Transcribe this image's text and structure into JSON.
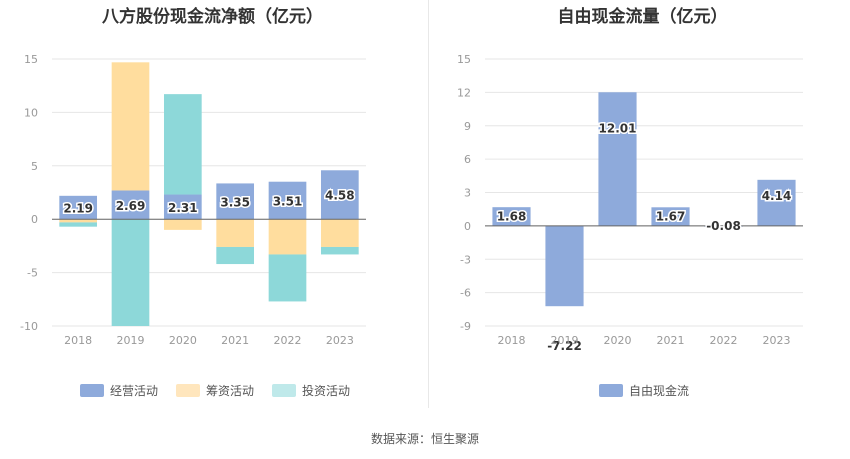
{
  "chart_data": [
    {
      "type": "bar",
      "title": "八方股份现金流净额（亿元）",
      "categories": [
        "2018",
        "2019",
        "2020",
        "2021",
        "2022",
        "2023"
      ],
      "ylim": [
        -10,
        15
      ],
      "yticks": [
        -10,
        -5,
        0,
        5,
        10,
        15
      ],
      "grid": true,
      "legend_position": "bottom",
      "series": [
        {
          "name": "经营活动",
          "color": "#8eaadb",
          "values": [
            2.19,
            2.69,
            2.31,
            3.35,
            3.51,
            4.58
          ],
          "labels": [
            "2.19",
            "2.69",
            "2.31",
            "3.35",
            "3.51",
            "4.58"
          ]
        },
        {
          "name": "筹资活动",
          "color": "#ffdd9e",
          "values": [
            -0.3,
            12.0,
            -1.0,
            -2.6,
            -3.3,
            -2.6
          ]
        },
        {
          "name": "投资活动",
          "color": "#8dd8d9",
          "values": [
            -0.4,
            -10.0,
            9.4,
            -1.6,
            -4.4,
            -0.7
          ]
        }
      ]
    },
    {
      "type": "bar",
      "title": "自由现金流量（亿元）",
      "categories": [
        "2018",
        "2019",
        "2020",
        "2021",
        "2022",
        "2023"
      ],
      "ylim": [
        -9,
        15
      ],
      "yticks": [
        -9,
        -6,
        -3,
        0,
        3,
        6,
        9,
        12,
        15
      ],
      "grid": true,
      "legend_position": "bottom",
      "series": [
        {
          "name": "自由现金流",
          "color": "#8eaadb",
          "values": [
            1.68,
            -7.22,
            12.01,
            1.67,
            -0.08,
            4.14
          ],
          "labels": [
            "1.68",
            "-7.22",
            "12.01",
            "1.67",
            "-0.08",
            "4.14"
          ]
        }
      ]
    }
  ],
  "legend_left": [
    "经营活动",
    "筹资活动",
    "投资活动"
  ],
  "legend_right": [
    "自由现金流"
  ],
  "source": "数据来源：恒生聚源"
}
